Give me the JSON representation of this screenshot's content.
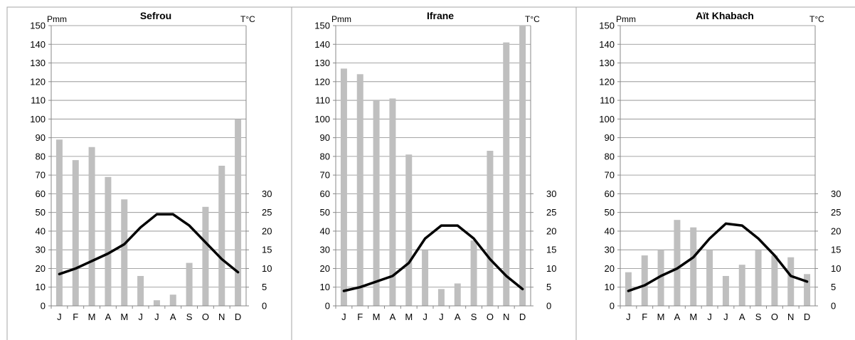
{
  "chart_data": [
    {
      "type": "bar",
      "title": "Sefrou",
      "ylabel": "Pmm",
      "y2label": "T°C",
      "categories": [
        "J",
        "F",
        "M",
        "A",
        "M",
        "J",
        "J",
        "A",
        "S",
        "O",
        "N",
        "D"
      ],
      "ylim": [
        0,
        150
      ],
      "y2lim": [
        0,
        75
      ],
      "y2_ticks": [
        0,
        5,
        10,
        15,
        20,
        25,
        30
      ],
      "grid": true,
      "series": [
        {
          "kind": "bar",
          "axis": "left",
          "values": [
            89,
            78,
            85,
            69,
            57,
            16,
            3,
            6,
            23,
            53,
            75,
            100
          ]
        },
        {
          "kind": "line",
          "axis": "right",
          "values": [
            8.5,
            10,
            12,
            14,
            16.5,
            21,
            24.5,
            24.5,
            21.5,
            17,
            12.5,
            9
          ]
        }
      ]
    },
    {
      "type": "bar",
      "title": "Ifrane",
      "ylabel": "Pmm",
      "y2label": "T°C",
      "categories": [
        "J",
        "F",
        "M",
        "A",
        "M",
        "J",
        "J",
        "A",
        "S",
        "O",
        "N",
        "D"
      ],
      "ylim": [
        0,
        150
      ],
      "y2lim": [
        0,
        75
      ],
      "y2_ticks": [
        0,
        5,
        10,
        15,
        20,
        25,
        30
      ],
      "grid": true,
      "series": [
        {
          "kind": "bar",
          "axis": "left",
          "values": [
            127,
            124,
            110,
            111,
            81,
            30,
            9,
            12,
            35,
            83,
            141,
            150
          ]
        },
        {
          "kind": "line",
          "axis": "right",
          "values": [
            4,
            5,
            6.5,
            8,
            11.5,
            18,
            21.5,
            21.5,
            18,
            12.5,
            8,
            4.5
          ]
        }
      ]
    },
    {
      "type": "bar",
      "title": "Aït Khabach",
      "ylabel": "Pmm",
      "y2label": "T°C",
      "categories": [
        "J",
        "F",
        "M",
        "A",
        "M",
        "J",
        "J",
        "A",
        "S",
        "O",
        "N",
        "D"
      ],
      "ylim": [
        0,
        150
      ],
      "y2lim": [
        0,
        75
      ],
      "y2_ticks": [
        0,
        5,
        10,
        15,
        20,
        25,
        30
      ],
      "grid": true,
      "series": [
        {
          "kind": "bar",
          "axis": "left",
          "values": [
            18,
            27,
            30,
            46,
            42,
            30,
            16,
            22,
            30,
            27,
            26,
            17
          ]
        },
        {
          "kind": "line",
          "axis": "right",
          "values": [
            4,
            5.5,
            8,
            10,
            13,
            18,
            22,
            21.5,
            18,
            13.5,
            8,
            6.5
          ]
        }
      ]
    }
  ]
}
